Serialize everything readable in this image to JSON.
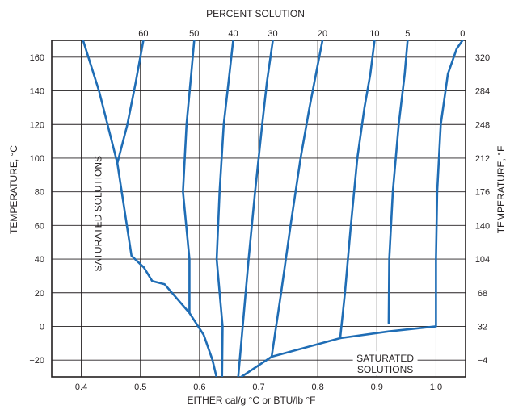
{
  "chart_data": {
    "type": "line",
    "title": "",
    "top_axis_label": "PERCENT SOLUTION",
    "xlabel": "EITHER cal/g °C or BTU/lb °F",
    "ylabel_left": "TEMPERATURE, °C",
    "ylabel_right": "TEMPERATURE, °F",
    "xlim": [
      0.35,
      1.05
    ],
    "ylim": [
      -30,
      170
    ],
    "x_ticks": [
      "0.4",
      "0.5",
      "0.6",
      "0.7",
      "0.8",
      "0.9",
      "1.0"
    ],
    "x_tick_values": [
      0.4,
      0.5,
      0.6,
      0.7,
      0.8,
      0.9,
      1.0
    ],
    "y_ticks_left": [
      "−20",
      "0",
      "20",
      "40",
      "60",
      "80",
      "100",
      "120",
      "140",
      "160"
    ],
    "y_tick_values": [
      -20,
      0,
      20,
      40,
      60,
      80,
      100,
      120,
      140,
      160
    ],
    "y_ticks_right": [
      "−4",
      "32",
      "68",
      "104",
      "140",
      "176",
      "212",
      "248",
      "284",
      "320"
    ],
    "grid": true,
    "line_color": "#1f6db5",
    "annotations": [
      {
        "text": "SATURATED SOLUTIONS",
        "orientation": "vertical",
        "x": 0.459,
        "y": 67
      },
      {
        "text_lines": [
          "SATURATED",
          "SOLUTIONS"
        ],
        "orientation": "horizontal",
        "x": 0.91,
        "y": -21
      }
    ],
    "series": [
      {
        "label": "0",
        "label_x": 1.045,
        "points": [
          [
            1.0,
            0
          ],
          [
            1.0,
            40
          ],
          [
            1.002,
            80
          ],
          [
            1.008,
            120
          ],
          [
            1.02,
            150
          ],
          [
            1.035,
            165
          ],
          [
            1.045,
            170
          ]
        ]
      },
      {
        "label": "5",
        "label_x": 0.952,
        "points": [
          [
            0.92,
            2
          ],
          [
            0.921,
            40
          ],
          [
            0.927,
            80
          ],
          [
            0.937,
            120
          ],
          [
            0.947,
            150
          ],
          [
            0.952,
            170
          ]
        ]
      },
      {
        "label": "10",
        "label_x": 0.896,
        "points": [
          [
            0.838,
            -7
          ],
          [
            0.846,
            20
          ],
          [
            0.856,
            60
          ],
          [
            0.867,
            100
          ],
          [
            0.879,
            130
          ],
          [
            0.889,
            150
          ],
          [
            0.896,
            170
          ]
        ]
      },
      {
        "label": "20",
        "label_x": 0.808,
        "points": [
          [
            0.722,
            -18
          ],
          [
            0.738,
            20
          ],
          [
            0.754,
            60
          ],
          [
            0.771,
            100
          ],
          [
            0.786,
            130
          ],
          [
            0.797,
            150
          ],
          [
            0.808,
            170
          ]
        ]
      },
      {
        "label": "30",
        "label_x": 0.724,
        "points": [
          [
            0.665,
            -32
          ],
          [
            0.673,
            0
          ],
          [
            0.683,
            40
          ],
          [
            0.694,
            80
          ],
          [
            0.706,
            120
          ],
          [
            0.714,
            145
          ],
          [
            0.724,
            170
          ]
        ]
      },
      {
        "label": "40",
        "label_x": 0.657,
        "points": [
          [
            0.638,
            -32
          ],
          [
            0.639,
            0
          ],
          [
            0.629,
            40
          ],
          [
            0.634,
            80
          ],
          [
            0.641,
            120
          ],
          [
            0.649,
            145
          ],
          [
            0.657,
            170
          ]
        ]
      },
      {
        "label": "50",
        "label_x": 0.591,
        "points": [
          [
            0.583,
            8
          ],
          [
            0.583,
            40
          ],
          [
            0.572,
            80
          ],
          [
            0.578,
            120
          ],
          [
            0.586,
            150
          ],
          [
            0.591,
            170
          ]
        ]
      },
      {
        "label": "60",
        "label_x": 0.505,
        "points": [
          [
            0.461,
            97
          ],
          [
            0.478,
            120
          ],
          [
            0.492,
            145
          ],
          [
            0.505,
            170
          ]
        ]
      }
    ],
    "boundaries": [
      {
        "name": "upper saturation curve",
        "points": [
          [
            0.403,
            170
          ],
          [
            0.43,
            140
          ],
          [
            0.461,
            97
          ],
          [
            0.485,
            42
          ],
          [
            0.506,
            35
          ],
          [
            0.52,
            27
          ],
          [
            0.541,
            25
          ],
          [
            0.583,
            8
          ],
          [
            0.607,
            -5
          ],
          [
            0.622,
            -20
          ],
          [
            0.63,
            -32
          ]
        ]
      },
      {
        "name": "lower saturation curve",
        "points": [
          [
            0.662,
            -32
          ],
          [
            0.722,
            -18
          ],
          [
            0.838,
            -7
          ],
          [
            0.92,
            -3
          ],
          [
            1.0,
            0
          ]
        ]
      }
    ]
  }
}
